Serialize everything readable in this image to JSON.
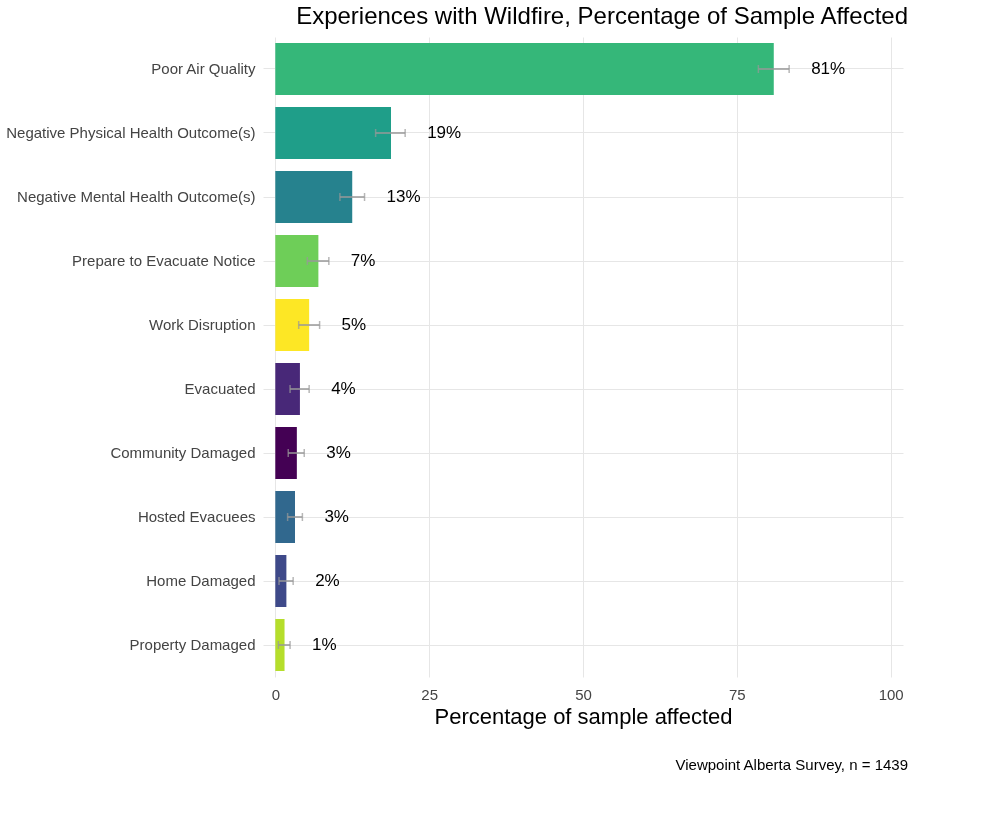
{
  "chart_data": {
    "type": "bar",
    "orientation": "horizontal",
    "title": "Experiences with Wildfire, Percentage of Sample Affected",
    "xlabel": "Percentage of sample affected",
    "categories": [
      "Poor Air Quality",
      "Negative Physical Health Outcome(s)",
      "Negative Mental Health Outcome(s)",
      "Prepare to Evacuate Notice",
      "Work Disruption",
      "Evacuated",
      "Community Damaged",
      "Hosted Evacuees",
      "Home Damaged",
      "Property Damaged"
    ],
    "values": [
      81,
      18.8,
      12.5,
      7.0,
      5.5,
      4.0,
      3.5,
      3.2,
      1.8,
      1.5
    ],
    "colors": [
      "#35b779",
      "#1f9e89",
      "#26828e",
      "#6ece58",
      "#fde725",
      "#482878",
      "#440154",
      "#31688e",
      "#3e4989",
      "#b5de2b"
    ],
    "errors": [
      [
        78.5,
        83.5
      ],
      [
        16.3,
        21.1
      ],
      [
        10.5,
        14.5
      ],
      [
        5.2,
        8.7
      ],
      [
        3.8,
        7.2
      ],
      [
        2.4,
        5.5
      ],
      [
        2.1,
        4.7
      ],
      [
        2.0,
        4.4
      ],
      [
        0.6,
        2.9
      ],
      [
        0.5,
        2.4
      ]
    ],
    "value_labels": [
      "81%",
      "19%",
      "13%",
      "7%",
      "5%",
      "4%",
      "3%",
      "3%",
      "2%",
      "1%"
    ],
    "xlim": [
      -2,
      102
    ],
    "xticks": [
      0,
      25,
      50,
      75,
      100
    ],
    "grid": true,
    "legend": false,
    "annotations": [
      "Viewpoint Alberta Survey, n = 1439"
    ]
  }
}
